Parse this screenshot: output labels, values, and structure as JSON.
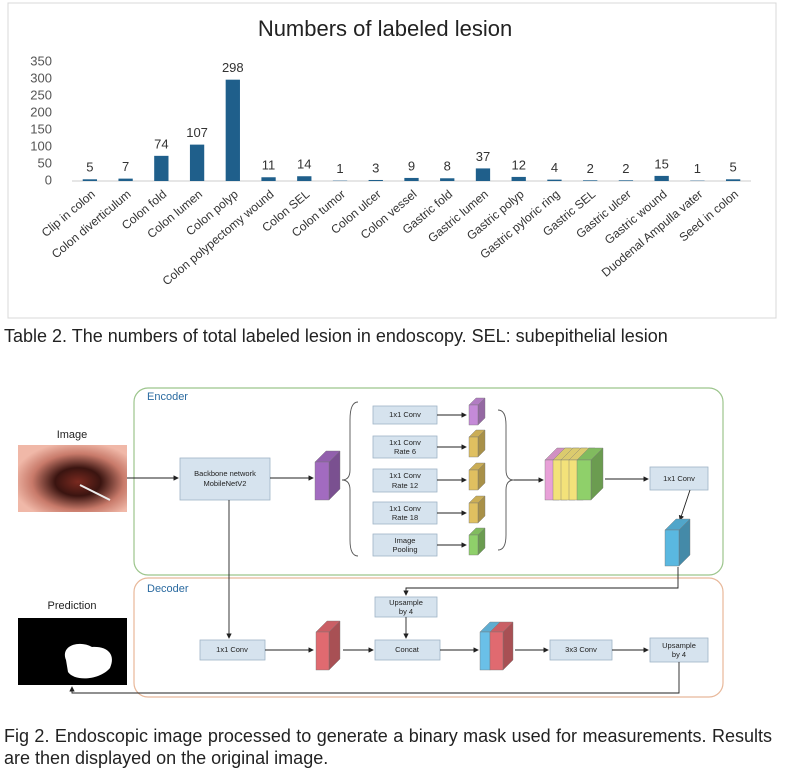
{
  "chart_data": {
    "type": "bar",
    "title": "Numbers of labeled lesion",
    "categories": [
      "Clip in colon",
      "Colon diverticulum",
      "Colon fold",
      "Colon lumen",
      "Colon polyp",
      "Colon polypectomy wound",
      "Colon SEL",
      "Colon tumor",
      "Colon ulcer",
      "Colon vessel",
      "Gastric fold",
      "Gastric lumen",
      "Gastric polyp",
      "Gastric pyloric ring",
      "Gastric SEL",
      "Gastric ulcer",
      "Gastric wound",
      "Duodenal Ampulla vater",
      "Seed in colon"
    ],
    "values": [
      5,
      7,
      74,
      107,
      298,
      11,
      14,
      1,
      3,
      9,
      8,
      37,
      12,
      4,
      2,
      2,
      15,
      1,
      5
    ],
    "color": "#1f5f8b",
    "ylim": [
      0,
      350
    ],
    "yticks": [
      0,
      50,
      100,
      150,
      200,
      250,
      300,
      350
    ],
    "grid": false
  },
  "table_caption": "Table 2. The numbers of total labeled lesion in endoscopy. SEL: subepithelial lesion",
  "diagram": {
    "encoder_label": "Encoder",
    "decoder_label": "Decoder",
    "image_label": "Image",
    "prediction_label": "Prediction",
    "nodes": [
      {
        "lines": [
          "Backbone network",
          "MobileNetV2"
        ]
      },
      {
        "lines": [
          "1x1 Conv"
        ]
      },
      {
        "lines": [
          "1x1 Conv",
          "Rate 6"
        ]
      },
      {
        "lines": [
          "1x1 Conv",
          "Rate 12"
        ]
      },
      {
        "lines": [
          "1x1 Conv",
          "Rate 18"
        ]
      },
      {
        "lines": [
          "Image",
          "Pooling"
        ]
      },
      {
        "lines": [
          "1x1 Conv"
        ]
      },
      {
        "lines": [
          "Upsample",
          "by 4"
        ]
      },
      {
        "lines": [
          "1x1 Conv"
        ]
      },
      {
        "lines": [
          "Concat"
        ]
      },
      {
        "lines": [
          "3x3 Conv"
        ]
      },
      {
        "lines": [
          "Upsample",
          "by 4"
        ]
      }
    ]
  },
  "figure_caption": "Fig 2. Endoscopic image processed to generate a binary mask used for measurements. Results are then displayed on the original image."
}
